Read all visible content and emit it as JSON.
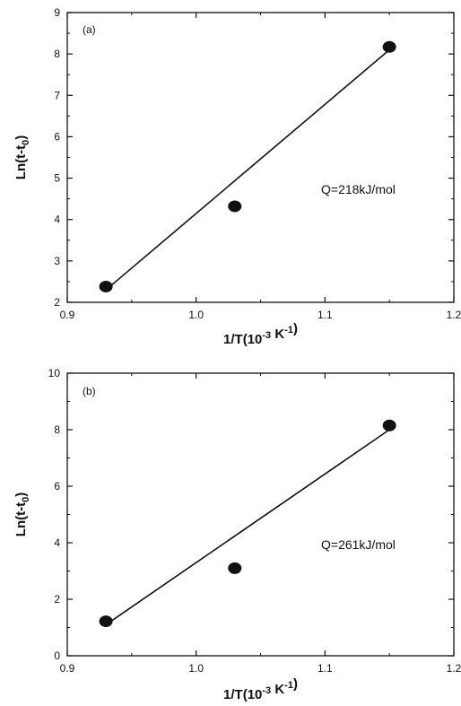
{
  "chart_data": [
    {
      "type": "scatter",
      "panel": "(a)",
      "xlabel": {
        "main": "1/T(10",
        "sup1": "-3",
        "mid": "  K",
        "sup2": "-1",
        "end": ")"
      },
      "ylabel": {
        "main": "Ln(t-t",
        "sub": "0",
        "end": ")"
      },
      "xlim": [
        0.9,
        1.2
      ],
      "ylim": [
        2,
        9
      ],
      "xticks": [
        "0.9",
        "1.0",
        "1.1",
        "1.2"
      ],
      "yticks": [
        "2",
        "3",
        "4",
        "5",
        "6",
        "7",
        "8",
        "9"
      ],
      "points": [
        {
          "x": 0.93,
          "y": 2.38
        },
        {
          "x": 1.03,
          "y": 4.32
        },
        {
          "x": 1.15,
          "y": 8.17
        }
      ],
      "fit_line": [
        {
          "x": 0.93,
          "y": 2.3
        },
        {
          "x": 1.15,
          "y": 8.1
        }
      ],
      "annotation": "Q=218kJ/mol"
    },
    {
      "type": "scatter",
      "panel": "(b)",
      "xlabel": {
        "main": "1/T(10",
        "sup1": "-3",
        "mid": "  K",
        "sup2": "-1",
        "end": ")"
      },
      "ylabel": {
        "main": "Ln(t-t",
        "sub": "0",
        "end": ")"
      },
      "xlim": [
        0.9,
        1.2
      ],
      "ylim": [
        0,
        10
      ],
      "xticks": [
        "0.9",
        "1.0",
        "1.1",
        "1.2"
      ],
      "yticks": [
        "0",
        "2",
        "4",
        "6",
        "8",
        "10"
      ],
      "points": [
        {
          "x": 0.93,
          "y": 1.22
        },
        {
          "x": 1.03,
          "y": 3.1
        },
        {
          "x": 1.15,
          "y": 8.15
        }
      ],
      "fit_line": [
        {
          "x": 0.93,
          "y": 1.1
        },
        {
          "x": 1.15,
          "y": 8.0
        }
      ],
      "annotation": "Q=261kJ/mol"
    }
  ]
}
